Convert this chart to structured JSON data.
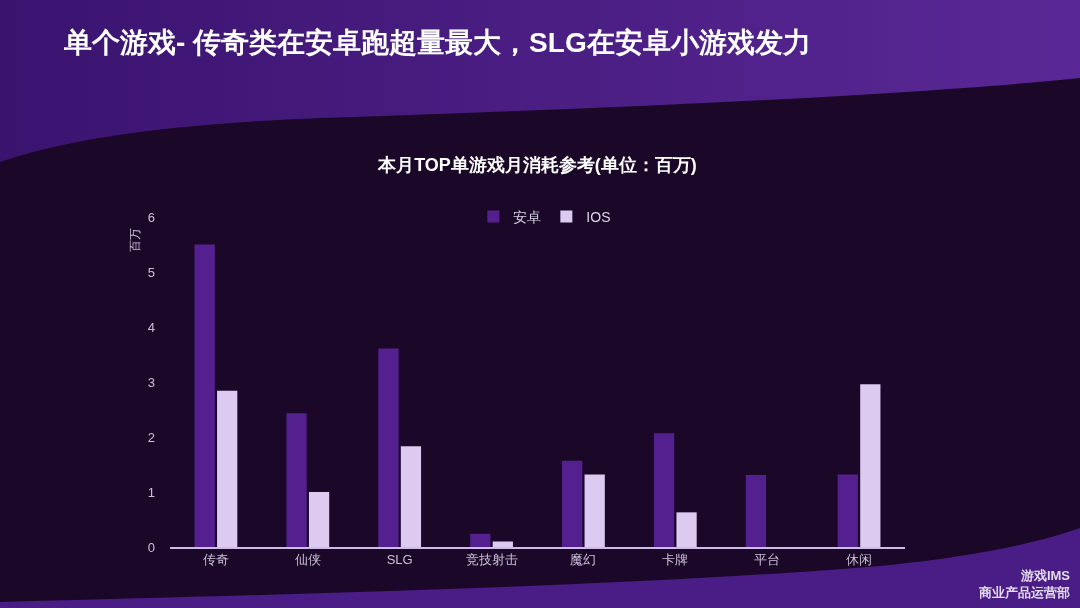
{
  "chart_data": {
    "type": "bar",
    "title": "单个游戏- 传奇类在安卓跑超量最大，SLG在安卓小游戏发力",
    "subtitle": "本月TOP单游戏月消耗参考(单位：百万)",
    "ylabel": "百万",
    "categories": [
      "传奇",
      "仙侠",
      "SLG",
      "竞技射击",
      "魔幻",
      "卡牌",
      "平台",
      "休闲"
    ],
    "series": [
      {
        "name": "安卓",
        "color": "#54208f",
        "values": [
          5.5,
          2.43,
          3.61,
          0.24,
          1.57,
          2.07,
          1.31,
          1.32
        ]
      },
      {
        "name": "IOS",
        "color": "#dccaf0",
        "values": [
          2.84,
          1.0,
          1.83,
          0.1,
          1.32,
          0.63,
          null,
          2.96
        ]
      }
    ],
    "ylim": [
      0,
      6
    ],
    "yticks": [
      0,
      1,
      2,
      3,
      4,
      5,
      6
    ],
    "grid": false,
    "legend": "top",
    "annotations": [
      "游戏IMS\n商业产品运营部"
    ]
  }
}
